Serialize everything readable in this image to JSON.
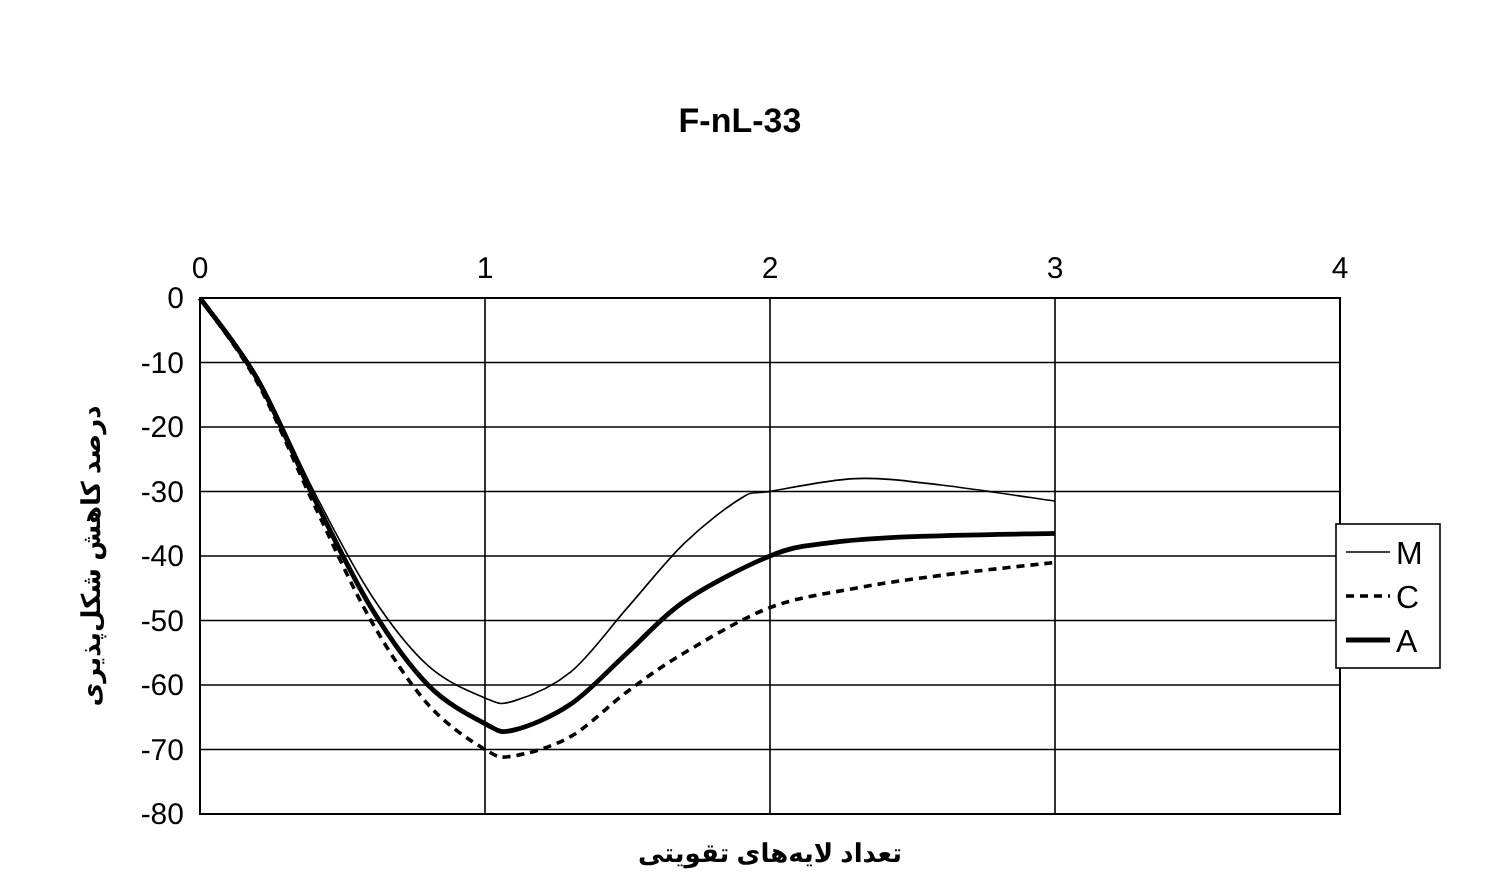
{
  "chart_data": {
    "type": "line",
    "title": "F-nL-33",
    "xlabel": "تعداد لایه‌های تقویتی",
    "ylabel": "درصد کاهش شکل‌پذیری",
    "xlim": [
      0,
      4
    ],
    "xticks": [
      0,
      1,
      2,
      3,
      4
    ],
    "ylim": [
      -80,
      0
    ],
    "yticks": [
      -80,
      -70,
      -60,
      -50,
      -40,
      -30,
      -20,
      -10,
      0
    ],
    "grid": true,
    "legend": "right",
    "marker": "none",
    "series": [
      {
        "name": "M",
        "color": "#000000",
        "line_style": "solid",
        "x": [
          0,
          0.2,
          0.4,
          0.6,
          0.8,
          1.0,
          1.1,
          1.3,
          1.5,
          1.7,
          1.9,
          2.0,
          2.3,
          2.6,
          3.0
        ],
        "values": [
          0,
          -12,
          -30,
          -46,
          -57,
          -62,
          -62.5,
          -58,
          -48,
          -38,
          -31,
          -30,
          -28,
          -29,
          -31.5
        ]
      },
      {
        "name": "C",
        "color": "#000000",
        "line_style": "dashed",
        "x": [
          0,
          0.2,
          0.4,
          0.6,
          0.8,
          1.0,
          1.1,
          1.3,
          1.5,
          1.7,
          2.0,
          2.3,
          2.6,
          3.0
        ],
        "values": [
          0,
          -13,
          -32,
          -50,
          -63,
          -70,
          -71,
          -68,
          -61,
          -55,
          -48,
          -45,
          -43,
          -41
        ]
      },
      {
        "name": "A",
        "color": "#000000",
        "line_style": "solid",
        "x": [
          0,
          0.2,
          0.4,
          0.6,
          0.8,
          1.0,
          1.1,
          1.3,
          1.5,
          1.7,
          2.0,
          2.2,
          2.5,
          3.0
        ],
        "values": [
          0,
          -12.5,
          -31,
          -48,
          -60,
          -66,
          -67,
          -63,
          -55,
          -47,
          -40,
          -38,
          -37,
          -36.5
        ]
      }
    ]
  }
}
